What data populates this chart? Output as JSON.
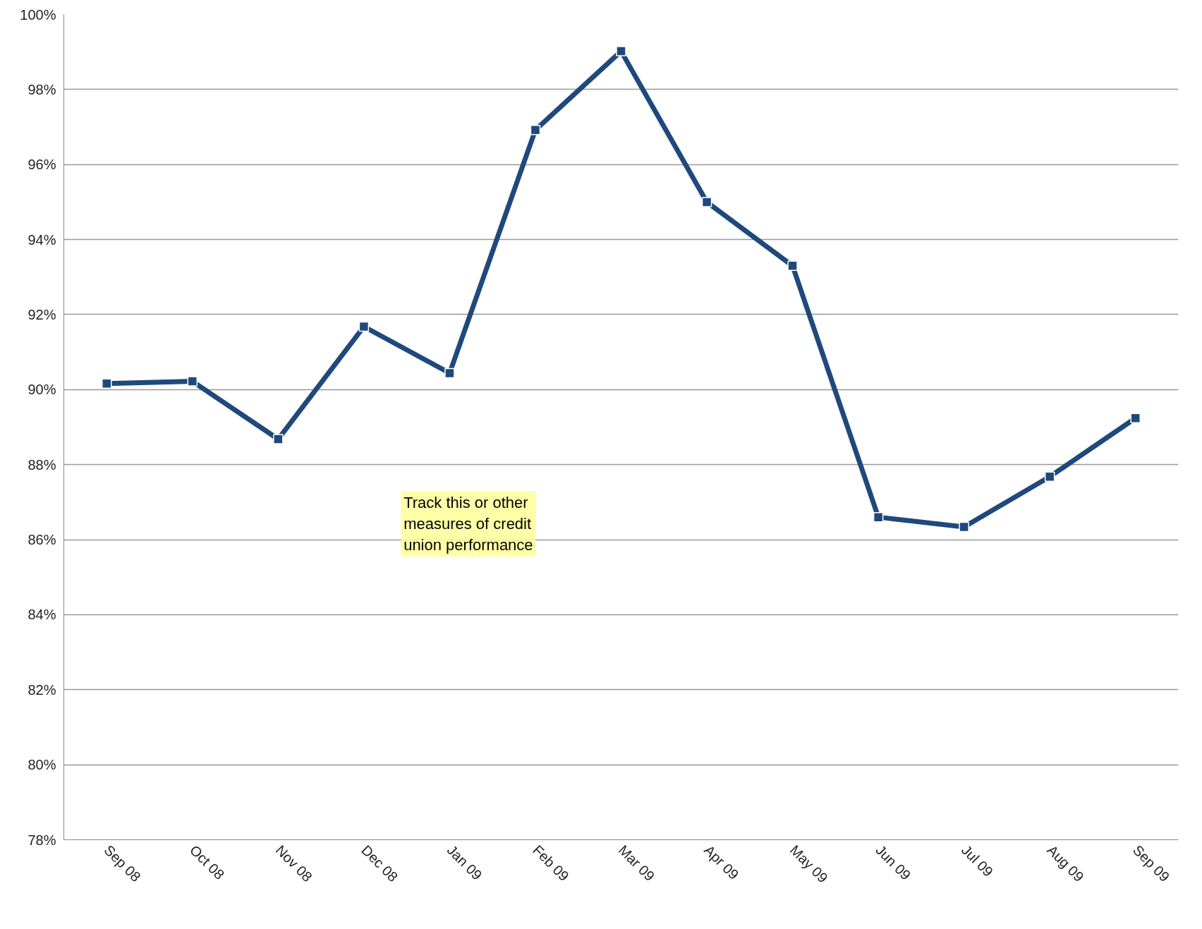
{
  "chart_data": {
    "type": "line",
    "categories": [
      "Sep 08",
      "Oct 08",
      "Nov 08",
      "Dec 08",
      "Jan 09",
      "Feb 09",
      "Mar 09",
      "Apr 09",
      "May 09",
      "Jun 09",
      "Jul 09",
      "Aug 09",
      "Sep 09"
    ],
    "series": [
      {
        "color": "#1f497d",
        "values": [
          90.16,
          90.22,
          88.68,
          91.68,
          90.44,
          96.92,
          99.02,
          95.0,
          93.3,
          86.6,
          86.34,
          87.68,
          89.24
        ]
      }
    ],
    "ylim": [
      78,
      100
    ],
    "yticks": [
      {
        "value": 78,
        "label": "78%"
      },
      {
        "value": 80,
        "label": "80%"
      },
      {
        "value": 82,
        "label": "82%"
      },
      {
        "value": 84,
        "label": "84%"
      },
      {
        "value": 86,
        "label": "86%"
      },
      {
        "value": 88,
        "label": "88%"
      },
      {
        "value": 90,
        "label": "90%"
      },
      {
        "value": 92,
        "label": "92%"
      },
      {
        "value": 94,
        "label": "94%"
      },
      {
        "value": 96,
        "label": "96%"
      },
      {
        "value": 98,
        "label": "98%"
      },
      {
        "value": 100,
        "label": "100%"
      }
    ],
    "grid": "y",
    "marker": "square",
    "line_style": "solid",
    "annotations": [
      "Track this or other\nmeasures of credit\nunion performance"
    ]
  }
}
